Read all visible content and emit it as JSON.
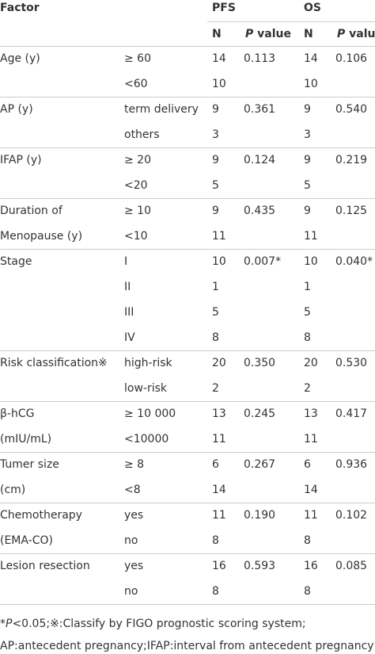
{
  "header": {
    "factor": "Factor",
    "pfs": "PFS",
    "os": "OS",
    "n": "N",
    "p_italic": "P",
    "p_rest": " value"
  },
  "groups": [
    {
      "factor": [
        "Age (y)"
      ],
      "rows": [
        [
          "≥ 60",
          14,
          "0.113",
          14,
          "0.106"
        ],
        [
          "<60",
          10,
          "",
          10,
          ""
        ]
      ]
    },
    {
      "factor": [
        "AP (y)"
      ],
      "rows": [
        [
          "term delivery",
          9,
          "0.361",
          9,
          "0.540"
        ],
        [
          "others",
          3,
          "",
          3,
          ""
        ]
      ]
    },
    {
      "factor": [
        "IFAP (y)"
      ],
      "rows": [
        [
          "≥ 20",
          9,
          "0.124",
          9,
          "0.219"
        ],
        [
          "<20",
          5,
          "",
          5,
          ""
        ]
      ]
    },
    {
      "factor": [
        "Duration of",
        "Menopause (y)"
      ],
      "rows": [
        [
          "≥ 10",
          9,
          "0.435",
          9,
          "0.125"
        ],
        [
          "<10",
          11,
          "",
          11,
          ""
        ]
      ]
    },
    {
      "factor": [
        "Stage"
      ],
      "rows": [
        [
          "I",
          10,
          "0.007*",
          10,
          "0.040*"
        ],
        [
          "II",
          1,
          "",
          1,
          ""
        ],
        [
          "III",
          5,
          "",
          5,
          ""
        ],
        [
          "IV",
          8,
          "",
          8,
          ""
        ]
      ]
    },
    {
      "factor": [
        "Risk classification※"
      ],
      "rows": [
        [
          "high-risk",
          20,
          "0.350",
          20,
          "0.530"
        ],
        [
          "low-risk",
          2,
          "",
          2,
          ""
        ]
      ]
    },
    {
      "factor": [
        "β-hCG",
        "(mIU/mL)"
      ],
      "rows": [
        [
          "≥ 10 000",
          13,
          "0.245",
          13,
          "0.417"
        ],
        [
          "<10000",
          11,
          "",
          11,
          ""
        ]
      ]
    },
    {
      "factor": [
        "Tumer size",
        "(cm)"
      ],
      "rows": [
        [
          "≥ 8",
          6,
          "0.267",
          6,
          "0.936"
        ],
        [
          "<8",
          14,
          "",
          14,
          ""
        ]
      ]
    },
    {
      "factor": [
        "Chemotherapy",
        "(EMA-CO)"
      ],
      "rows": [
        [
          "yes",
          11,
          "0.190",
          11,
          "0.102"
        ],
        [
          "no",
          8,
          "",
          8,
          ""
        ]
      ]
    },
    {
      "factor": [
        "Lesion resection"
      ],
      "rows": [
        [
          "yes",
          16,
          "0.593",
          16,
          "0.085"
        ],
        [
          "no",
          8,
          "",
          8,
          ""
        ]
      ]
    }
  ],
  "footnote": {
    "star": "*",
    "p_italic": "P",
    "line1": "<0.05;※:Classify by FIGO prognostic scoring system;",
    "line2": "AP:antecedent pregnancy;IFAP:interval from antecedent pregnancy"
  }
}
